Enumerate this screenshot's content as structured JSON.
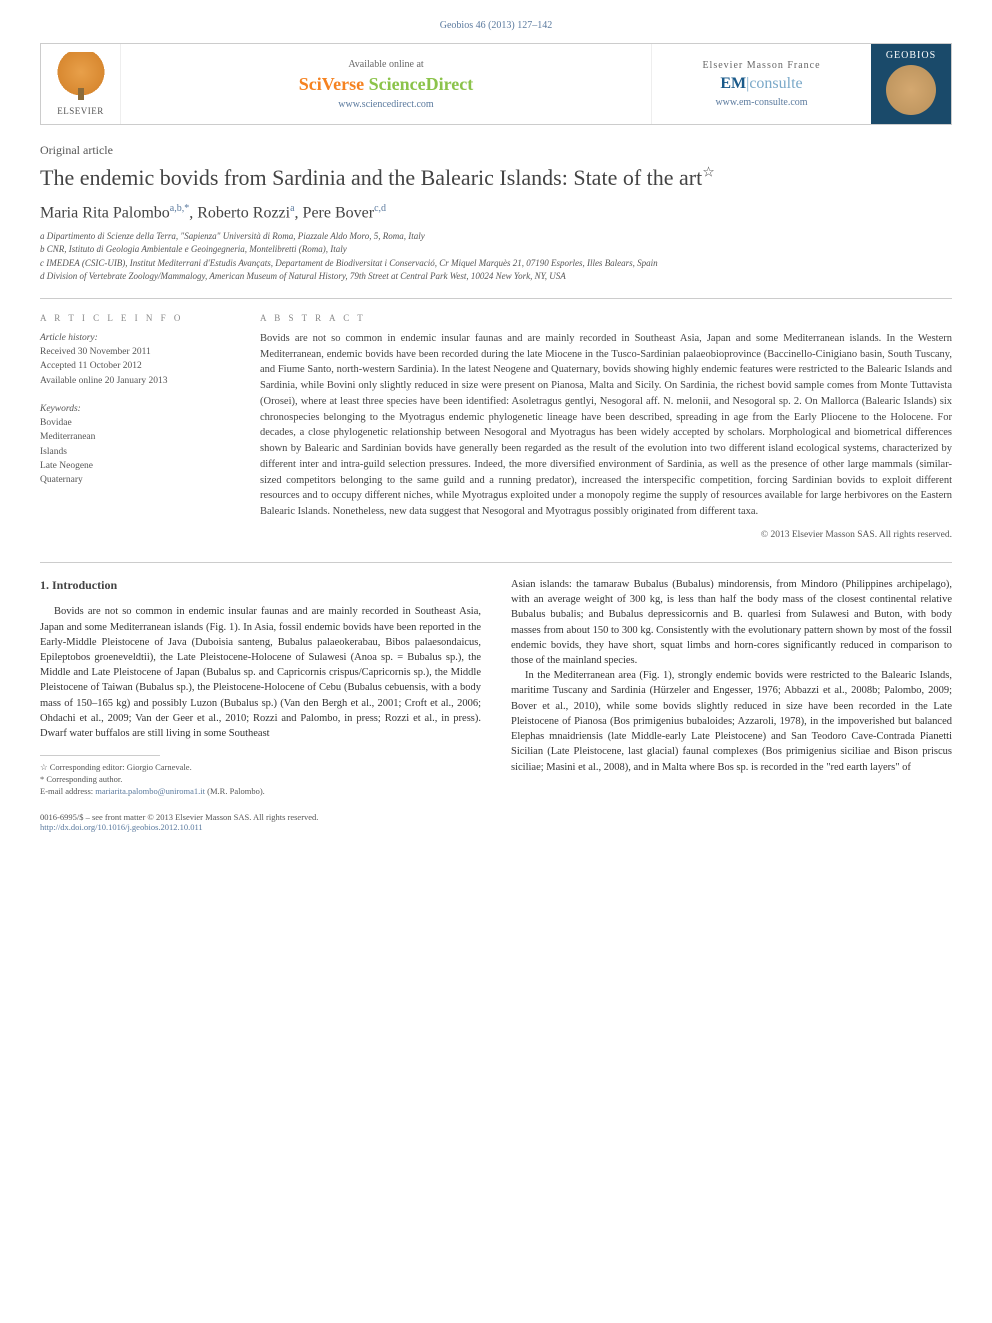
{
  "journal_ref": "Geobios 46 (2013) 127–142",
  "header": {
    "elsevier": "ELSEVIER",
    "available": "Available online at",
    "sciverse_orange": "SciVerse ",
    "sciverse_green": "ScienceDirect",
    "sciverse_url": "www.sciencedirect.com",
    "masson": "Elsevier Masson France",
    "em_prefix": "EM",
    "em_suffix": "consulte",
    "em_url": "www.em-consulte.com",
    "geobios": "GEOBIOS"
  },
  "article_type": "Original article",
  "title": "The endemic bovids from Sardinia and the Balearic Islands: State of the art",
  "title_star": "☆",
  "authors": {
    "a1": "Maria Rita Palombo",
    "a1_sup": "a,b,*",
    "a2": "Roberto Rozzi",
    "a2_sup": "a",
    "a3": "Pere Bover",
    "a3_sup": "c,d"
  },
  "affiliations": {
    "a": "a Dipartimento di Scienze della Terra, \"Sapienza\" Università di Roma, Piazzale Aldo Moro, 5, Roma, Italy",
    "b": "b CNR, Istituto di Geologia Ambientale e Geoingegneria, Montelibretti (Roma), Italy",
    "c": "c IMEDEA (CSIC-UIB), Institut Mediterrani d'Estudis Avançats, Departament de Biodiversitat i Conservació, Cr Miquel Marquès 21, 07190 Esporles, Illes Balears, Spain",
    "d": "d Division of Vertebrate Zoology/Mammalogy, American Museum of Natural History, 79th Street at Central Park West, 10024 New York, NY, USA"
  },
  "info": {
    "label": "A R T I C L E   I N F O",
    "history_label": "Article history:",
    "received": "Received 30 November 2011",
    "accepted": "Accepted 11 October 2012",
    "online": "Available online 20 January 2013",
    "keywords_label": "Keywords:",
    "k1": "Bovidae",
    "k2": "Mediterranean",
    "k3": "Islands",
    "k4": "Late Neogene",
    "k5": "Quaternary"
  },
  "abstract": {
    "label": "A B S T R A C T",
    "text": "Bovids are not so common in endemic insular faunas and are mainly recorded in Southeast Asia, Japan and some Mediterranean islands. In the Western Mediterranean, endemic bovids have been recorded during the late Miocene in the Tusco-Sardinian palaeobioprovince (Baccinello-Cinigiano basin, South Tuscany, and Fiume Santo, north-western Sardinia). In the latest Neogene and Quaternary, bovids showing highly endemic features were restricted to the Balearic Islands and Sardinia, while Bovini only slightly reduced in size were present on Pianosa, Malta and Sicily. On Sardinia, the richest bovid sample comes from Monte Tuttavista (Orosei), where at least three species have been identified: Asoletragus gentlyi, Nesogoral aff. N. melonii, and Nesogoral sp. 2. On Mallorca (Balearic Islands) six chronospecies belonging to the Myotragus endemic phylogenetic lineage have been described, spreading in age from the Early Pliocene to the Holocene. For decades, a close phylogenetic relationship between Nesogoral and Myotragus has been widely accepted by scholars. Morphological and biometrical differences shown by Balearic and Sardinian bovids have generally been regarded as the result of the evolution into two different island ecological systems, characterized by different inter and intra-guild selection pressures. Indeed, the more diversified environment of Sardinia, as well as the presence of other large mammals (similar-sized competitors belonging to the same guild and a running predator), increased the interspecific competition, forcing Sardinian bovids to exploit different resources and to occupy different niches, while Myotragus exploited under a monopoly regime the supply of resources available for large herbivores on the Eastern Balearic Islands. Nonetheless, new data suggest that Nesogoral and Myotragus possibly originated from different taxa.",
    "copyright": "© 2013 Elsevier Masson SAS. All rights reserved."
  },
  "body": {
    "heading": "1. Introduction",
    "col1_p1": "Bovids are not so common in endemic insular faunas and are mainly recorded in Southeast Asia, Japan and some Mediterranean islands (Fig. 1). In Asia, fossil endemic bovids have been reported in the Early-Middle Pleistocene of Java (Duboisia santeng, Bubalus palaeokerabau, Bibos palaesondaicus, Epileptobos groeneveldtii), the Late Pleistocene-Holocene of Sulawesi (Anoa sp. = Bubalus sp.), the Middle and Late Pleistocene of Japan (Bubalus sp. and Capricornis crispus/Capricornis sp.), the Middle Pleistocene of Taiwan (Bubalus sp.), the Pleistocene-Holocene of Cebu (Bubalus cebuensis, with a body mass of 150–165 kg) and possibly Luzon (Bubalus sp.) (Van den Bergh et al., 2001; Croft et al., 2006; Ohdachi et al., 2009; Van der Geer et al., 2010; Rozzi and Palombo, in press; Rozzi et al., in press). Dwarf water buffalos are still living in some Southeast",
    "col2_p1": "Asian islands: the tamaraw Bubalus (Bubalus) mindorensis, from Mindoro (Philippines archipelago), with an average weight of 300 kg, is less than half the body mass of the closest continental relative Bubalus bubalis; and Bubalus depressicornis and B. quarlesi from Sulawesi and Buton, with body masses from about 150 to 300 kg. Consistently with the evolutionary pattern shown by most of the fossil endemic bovids, they have short, squat limbs and horn-cores significantly reduced in comparison to those of the mainland species.",
    "col2_p2": "In the Mediterranean area (Fig. 1), strongly endemic bovids were restricted to the Balearic Islands, maritime Tuscany and Sardinia (Hürzeler and Engesser, 1976; Abbazzi et al., 2008b; Palombo, 2009; Bover et al., 2010), while some bovids slightly reduced in size have been recorded in the Late Pleistocene of Pianosa (Bos primigenius bubaloides; Azzaroli, 1978), in the impoverished but balanced Elephas mnaidriensis (late Middle-early Late Pleistocene) and San Teodoro Cave-Contrada Pianetti Sicilian (Late Pleistocene, last glacial) faunal complexes (Bos primigenius siciliae and Bison priscus siciliae; Masini et al., 2008), and in Malta where Bos sp. is recorded in the \"red earth layers\" of"
  },
  "footnotes": {
    "f1": "☆ Corresponding editor: Giorgio Carnevale.",
    "f2": "* Corresponding author.",
    "f3_label": "E-mail address: ",
    "f3_email": "mariarita.palombo@uniroma1.it",
    "f3_suffix": " (M.R. Palombo)."
  },
  "footer": {
    "issn": "0016-6995/$ – see front matter © 2013 Elsevier Masson SAS. All rights reserved.",
    "doi": "http://dx.doi.org/10.1016/j.geobios.2012.10.011"
  },
  "colors": {
    "link": "#5b7a9e",
    "orange": "#f58220",
    "green": "#8bc34a",
    "darkblue": "#1a5a8a"
  }
}
